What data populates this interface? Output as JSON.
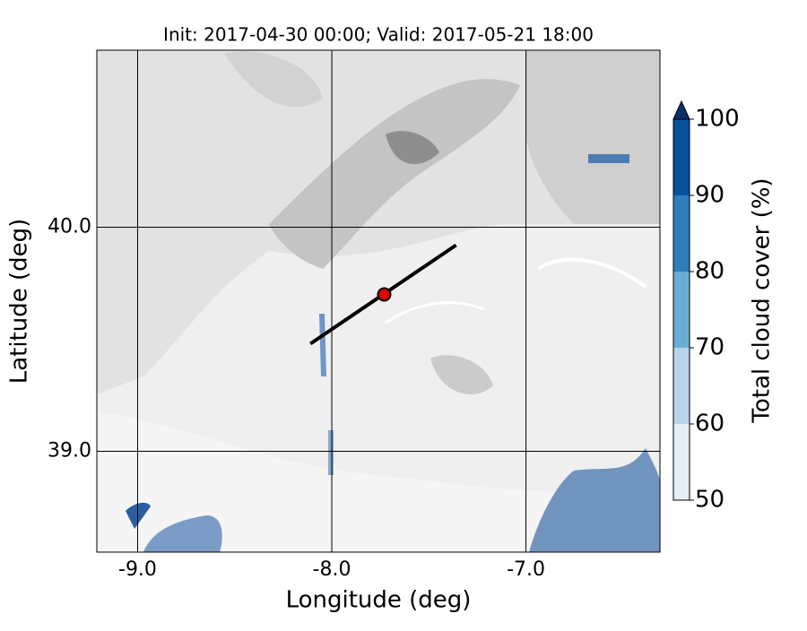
{
  "chart_data": {
    "type": "map",
    "title": "Init: 2017-04-30 00:00; Valid: 2017-05-21 18:00",
    "x_label": "Longitude (deg)",
    "y_label": "Latitude (deg)",
    "xlim": [
      -9.21,
      -6.31
    ],
    "ylim": [
      38.55,
      40.79
    ],
    "xticks": [
      {
        "value": -9,
        "label": "-9.0"
      },
      {
        "value": -8,
        "label": "-8.0"
      },
      {
        "value": -7,
        "label": "-7.0"
      }
    ],
    "yticks": [
      {
        "value": 39,
        "label": "39.0"
      },
      {
        "value": 40,
        "label": "40.0"
      }
    ],
    "grid": true,
    "section": {
      "lon": [
        -8.11,
        -7.36
      ],
      "lat": [
        39.48,
        39.92
      ],
      "color": "#000000"
    },
    "point": {
      "lon": -7.73,
      "lat": 39.7,
      "color": "#e00000"
    },
    "colorbar": {
      "label": "Total cloud cover (%)",
      "lim": [
        50,
        100
      ],
      "ticks": [
        50,
        60,
        70,
        80,
        90,
        100
      ],
      "colors": [
        "#e3eef8",
        "#b7d4ea",
        "#6aaed6",
        "#2e7ebc",
        "#08519c"
      ],
      "extend_color": "#08306b"
    }
  }
}
